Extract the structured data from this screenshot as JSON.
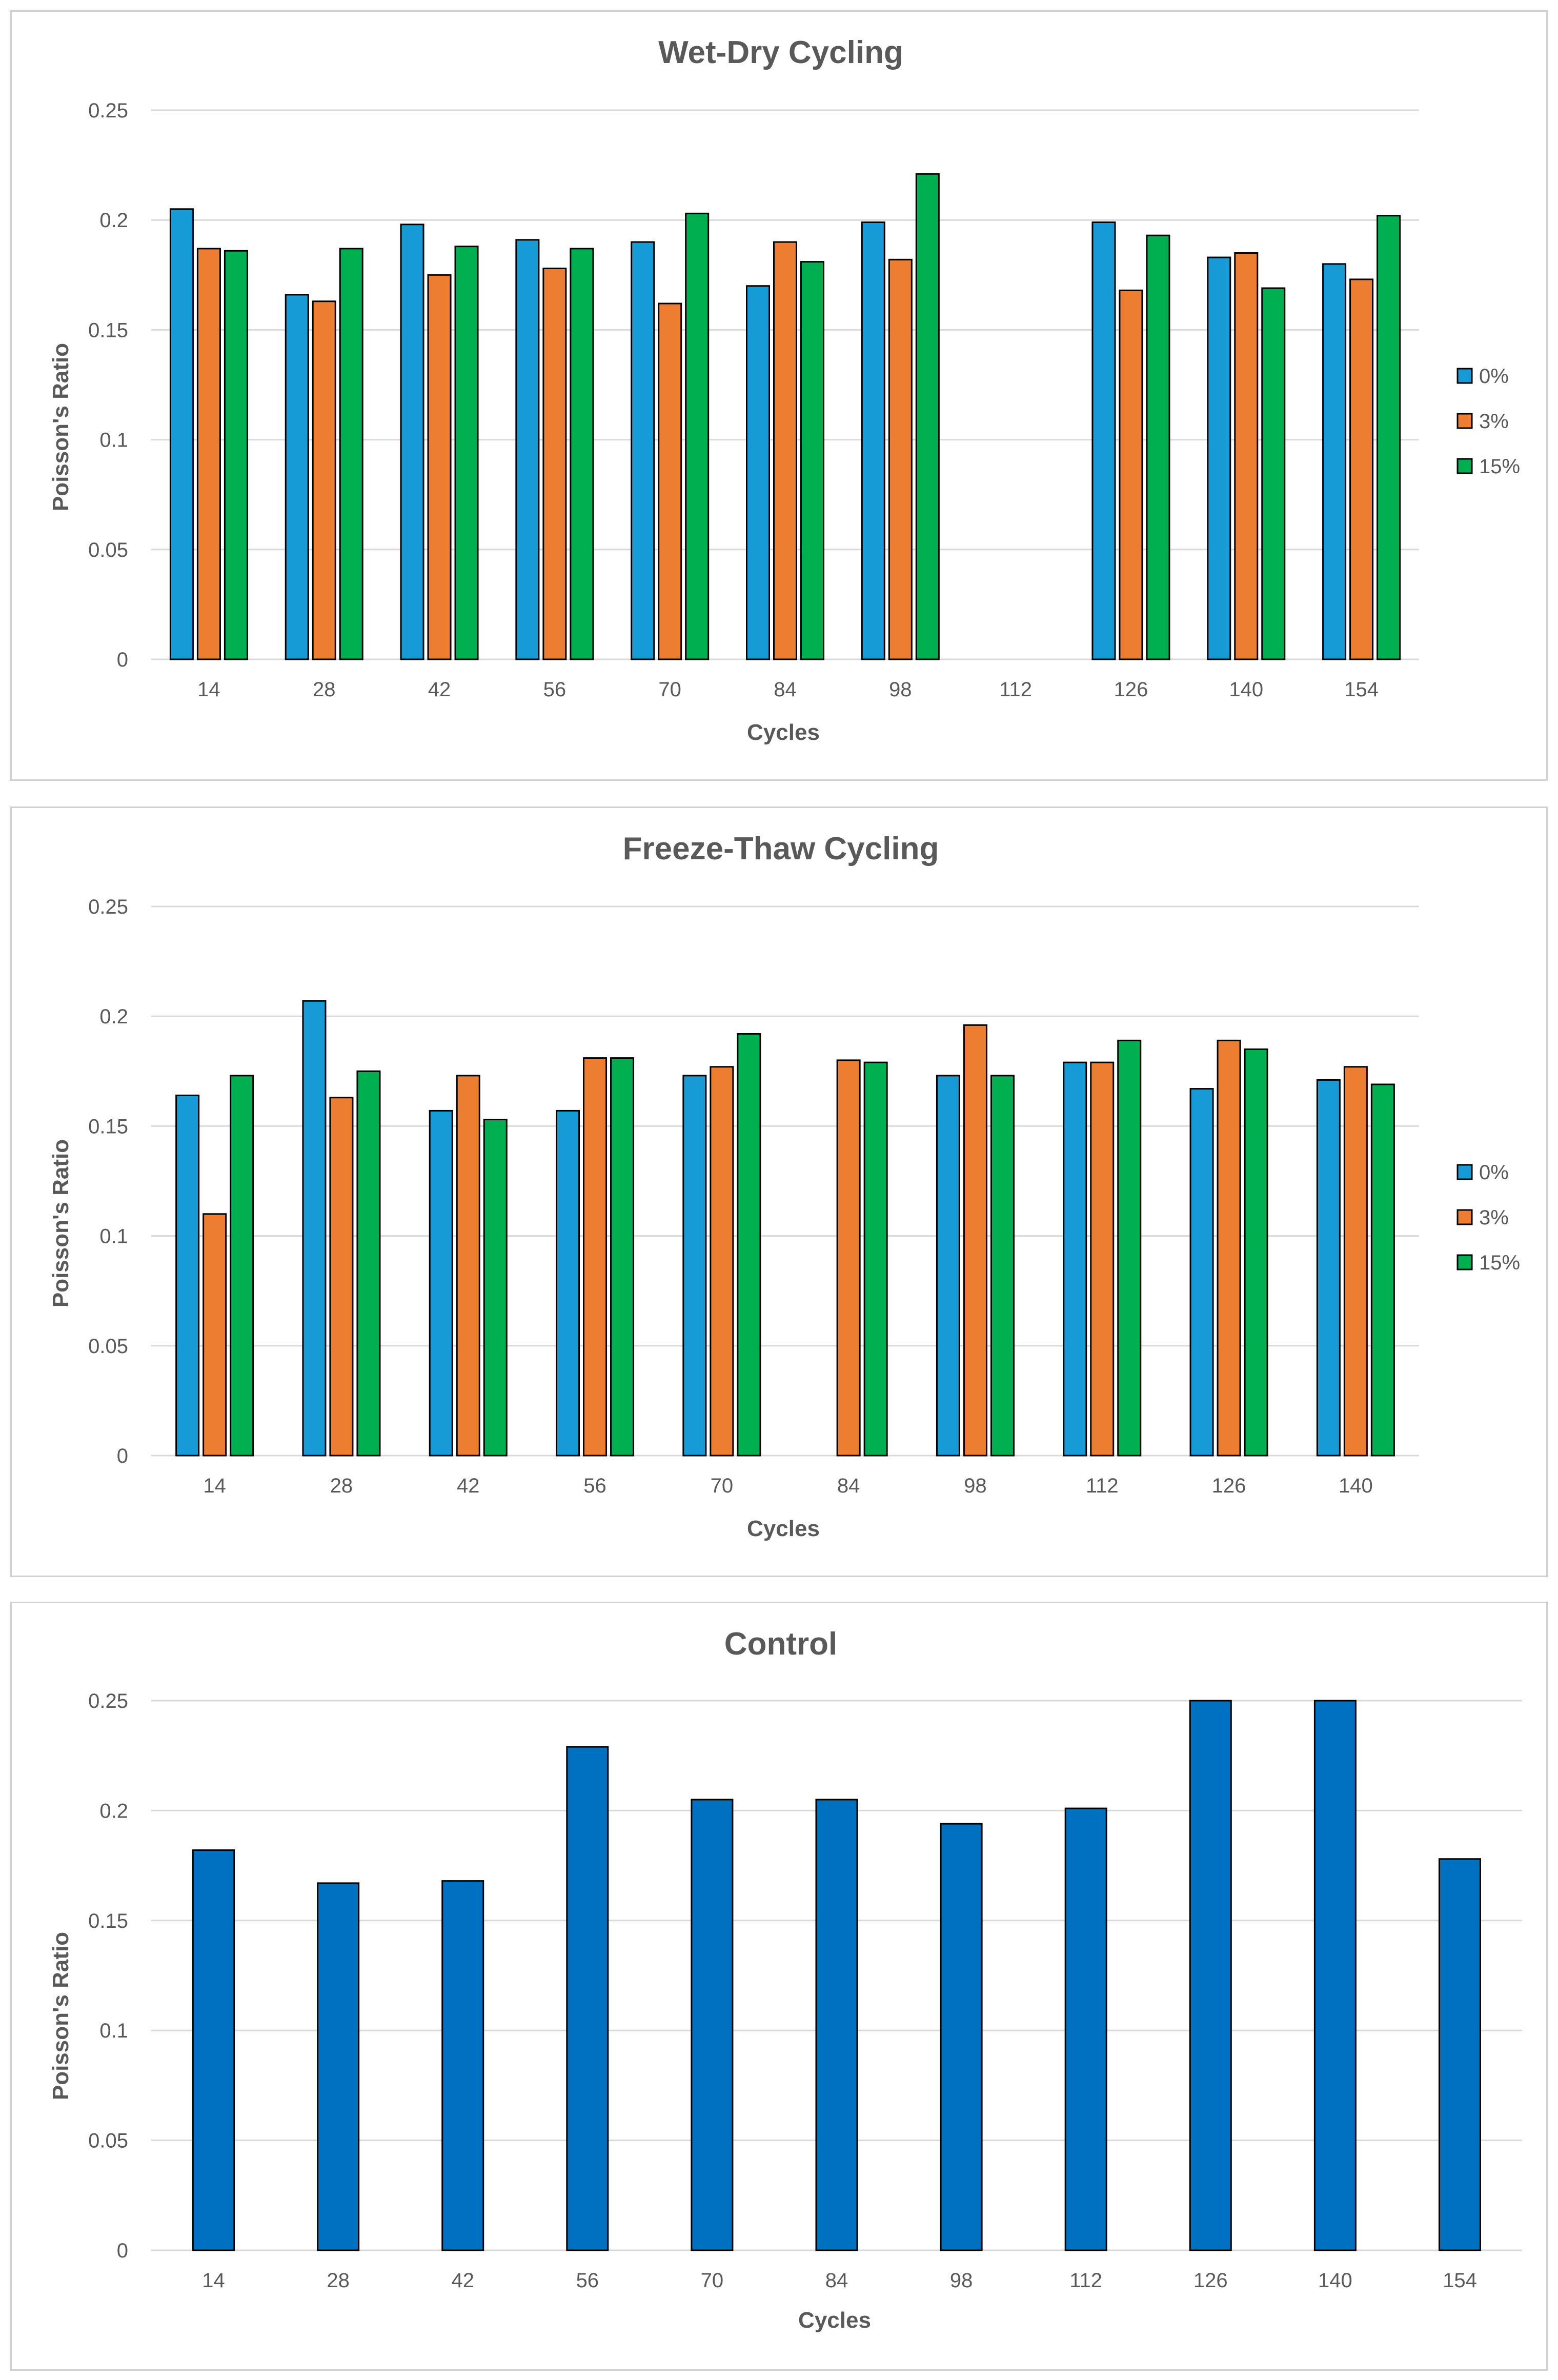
{
  "chart_data": [
    {
      "type": "bar",
      "title": "Wet-Dry Cycling",
      "xlabel": "Cycles",
      "ylabel": "Poisson's Ratio",
      "ylim": [
        0,
        0.25
      ],
      "yticks": [
        "0",
        "0.05",
        "0.1",
        "0.15",
        "0.2",
        "0.25"
      ],
      "grid": true,
      "legend": "right",
      "categories": [
        "14",
        "28",
        "42",
        "56",
        "70",
        "84",
        "98",
        "112",
        "126",
        "140",
        "154"
      ],
      "series": [
        {
          "name": "0%",
          "color": "#179bd7",
          "values": [
            0.205,
            0.166,
            0.198,
            0.191,
            0.19,
            0.17,
            0.199,
            null,
            0.199,
            0.183,
            0.18
          ]
        },
        {
          "name": "3%",
          "color": "#ed7d31",
          "values": [
            0.187,
            0.163,
            0.175,
            0.178,
            0.162,
            0.19,
            0.182,
            null,
            0.168,
            0.185,
            0.173
          ]
        },
        {
          "name": "15%",
          "color": "#00b050",
          "values": [
            0.186,
            0.187,
            0.188,
            0.187,
            0.203,
            0.181,
            0.221,
            null,
            0.193,
            0.169,
            0.202
          ]
        }
      ]
    },
    {
      "type": "bar",
      "title": "Freeze-Thaw Cycling",
      "xlabel": "Cycles",
      "ylabel": "Poisson's Ratio",
      "ylim": [
        0,
        0.25
      ],
      "yticks": [
        "0",
        "0.05",
        "0.1",
        "0.15",
        "0.2",
        "0.25"
      ],
      "grid": true,
      "legend": "right",
      "categories": [
        "14",
        "28",
        "42",
        "56",
        "70",
        "84",
        "98",
        "112",
        "126",
        "140"
      ],
      "series": [
        {
          "name": "0%",
          "color": "#179bd7",
          "values": [
            0.164,
            0.207,
            0.157,
            0.157,
            0.173,
            null,
            0.173,
            0.179,
            0.167,
            0.171
          ]
        },
        {
          "name": "3%",
          "color": "#ed7d31",
          "values": [
            0.11,
            0.163,
            0.173,
            0.181,
            0.177,
            0.18,
            0.196,
            0.179,
            0.189,
            0.177
          ]
        },
        {
          "name": "15%",
          "color": "#00b050",
          "values": [
            0.173,
            0.175,
            0.153,
            0.181,
            0.192,
            0.179,
            0.173,
            0.189,
            0.185,
            0.169
          ]
        }
      ]
    },
    {
      "type": "bar",
      "title": "Control",
      "xlabel": "Cycles",
      "ylabel": "Poisson's Ratio",
      "ylim": [
        0,
        0.25
      ],
      "yticks": [
        "0",
        "0.05",
        "0.1",
        "0.15",
        "0.2",
        "0.25"
      ],
      "grid": true,
      "legend": "none",
      "categories": [
        "14",
        "28",
        "42",
        "56",
        "70",
        "84",
        "98",
        "112",
        "126",
        "140",
        "154"
      ],
      "series": [
        {
          "name": "Control",
          "color": "#0070c0",
          "values": [
            0.182,
            0.167,
            0.168,
            0.229,
            0.205,
            0.205,
            0.194,
            0.201,
            0.25,
            0.25,
            0.178
          ]
        }
      ]
    }
  ]
}
